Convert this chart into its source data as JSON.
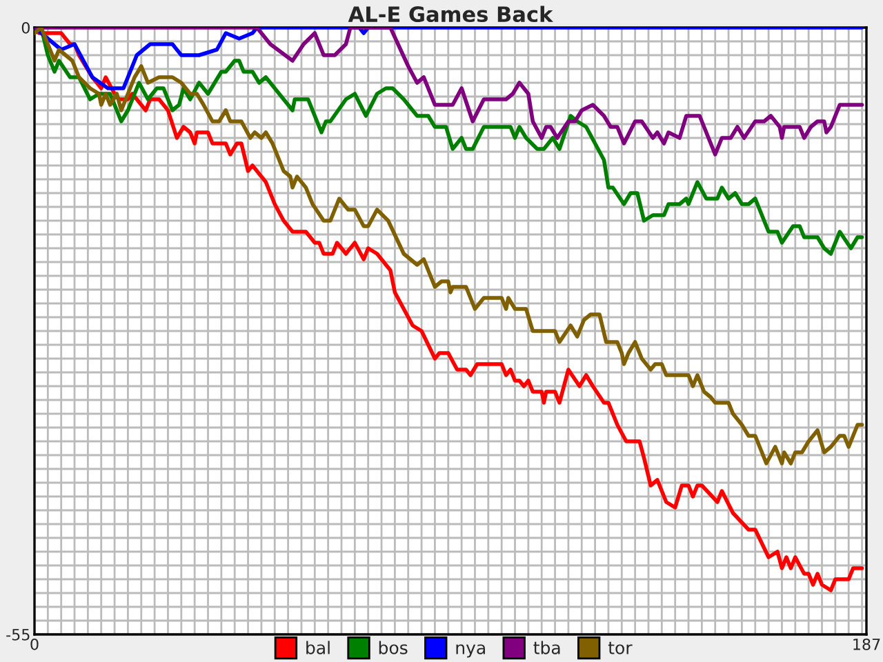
{
  "chart_data": {
    "type": "line",
    "title": "AL-E Games Back",
    "xlim": [
      0,
      187
    ],
    "ylim": [
      -55,
      0
    ],
    "xticks": [
      0,
      {
        "value": 3,
        "label": null
      },
      {
        "value": 6,
        "label": null
      },
      {
        "value": 9,
        "label": null
      },
      {
        "value": 12,
        "label": null
      },
      {
        "value": 15,
        "label": null
      },
      {
        "value": 18,
        "label": null
      },
      {
        "value": 21,
        "label": null
      },
      {
        "value": 24,
        "label": null
      },
      {
        "value": 27,
        "label": null
      },
      {
        "value": 30,
        "label": null
      },
      {
        "value": 33,
        "label": null
      },
      {
        "value": 36,
        "label": null
      },
      {
        "value": 39,
        "label": null
      },
      {
        "value": 42,
        "label": null
      },
      {
        "value": 45,
        "label": null
      },
      {
        "value": 48,
        "label": null
      },
      {
        "value": 51,
        "label": null
      },
      {
        "value": 54,
        "label": null
      },
      {
        "value": 57,
        "label": null
      },
      {
        "value": 60,
        "label": null
      },
      {
        "value": 63,
        "label": null
      },
      {
        "value": 66,
        "label": null
      },
      {
        "value": 69,
        "label": null
      },
      {
        "value": 72,
        "label": null
      },
      {
        "value": 75,
        "label": null
      },
      {
        "value": 78,
        "label": null
      },
      {
        "value": 81,
        "label": null
      },
      {
        "value": 84,
        "label": null
      },
      {
        "value": 87,
        "label": null
      },
      {
        "value": 90,
        "label": null
      },
      {
        "value": 93,
        "label": null
      },
      {
        "value": 96,
        "label": null
      },
      {
        "value": 99,
        "label": null
      },
      {
        "value": 102,
        "label": null
      },
      {
        "value": 105,
        "label": null
      },
      {
        "value": 108,
        "label": null
      },
      {
        "value": 111,
        "label": null
      },
      {
        "value": 114,
        "label": null
      },
      {
        "value": 117,
        "label": null
      },
      {
        "value": 120,
        "label": null
      },
      {
        "value": 123,
        "label": null
      },
      {
        "value": 126,
        "label": null
      },
      {
        "value": 129,
        "label": null
      },
      {
        "value": 132,
        "label": null
      },
      {
        "value": 135,
        "label": null
      },
      {
        "value": 138,
        "label": null
      },
      {
        "value": 141,
        "label": null
      },
      {
        "value": 144,
        "label": null
      },
      {
        "value": 147,
        "label": null
      },
      {
        "value": 150,
        "label": null
      },
      {
        "value": 153,
        "label": null
      },
      {
        "value": 156,
        "label": null
      },
      {
        "value": 159,
        "label": null
      },
      {
        "value": 162,
        "label": null
      },
      {
        "value": 165,
        "label": null
      },
      {
        "value": 168,
        "label": null
      },
      {
        "value": 171,
        "label": null
      },
      {
        "value": 174,
        "label": null
      },
      {
        "value": 177,
        "label": null
      },
      {
        "value": 180,
        "label": null
      },
      {
        "value": 183,
        "label": null
      },
      {
        "value": 186,
        "label": null
      },
      187
    ],
    "yticks": [
      0,
      {
        "value": -1.25,
        "label": null
      },
      {
        "value": -2.5,
        "label": null
      },
      {
        "value": -3.75,
        "label": null
      },
      {
        "value": -5,
        "label": null
      },
      {
        "value": -6.25,
        "label": null
      },
      {
        "value": -7.5,
        "label": null
      },
      {
        "value": -8.75,
        "label": null
      },
      {
        "value": -10,
        "label": null
      },
      {
        "value": -11.25,
        "label": null
      },
      {
        "value": -12.5,
        "label": null
      },
      {
        "value": -13.75,
        "label": null
      },
      {
        "value": -15,
        "label": null
      },
      {
        "value": -16.25,
        "label": null
      },
      {
        "value": -17.5,
        "label": null
      },
      {
        "value": -18.75,
        "label": null
      },
      {
        "value": -20,
        "label": null
      },
      {
        "value": -21.25,
        "label": null
      },
      {
        "value": -22.5,
        "label": null
      },
      {
        "value": -23.75,
        "label": null
      },
      {
        "value": -25,
        "label": null
      },
      {
        "value": -26.25,
        "label": null
      },
      {
        "value": -27.5,
        "label": null
      },
      {
        "value": -28.75,
        "label": null
      },
      {
        "value": -30,
        "label": null
      },
      {
        "value": -31.25,
        "label": null
      },
      {
        "value": -32.5,
        "label": null
      },
      {
        "value": -33.75,
        "label": null
      },
      {
        "value": -35,
        "label": null
      },
      {
        "value": -36.25,
        "label": null
      },
      {
        "value": -37.5,
        "label": null
      },
      {
        "value": -38.75,
        "label": null
      },
      {
        "value": -40,
        "label": null
      },
      {
        "value": -41.25,
        "label": null
      },
      {
        "value": -42.5,
        "label": null
      },
      {
        "value": -43.75,
        "label": null
      },
      {
        "value": -45,
        "label": null
      },
      {
        "value": -46.25,
        "label": null
      },
      {
        "value": -47.5,
        "label": null
      },
      {
        "value": -48.75,
        "label": null
      },
      {
        "value": -50,
        "label": null
      },
      {
        "value": -51.25,
        "label": null
      },
      {
        "value": -52.5,
        "label": null
      },
      {
        "value": -53.75,
        "label": null
      },
      -55
    ],
    "grid": true,
    "legend": "bottom",
    "marker": "none",
    "line_style": "solid",
    "series": [
      {
        "name": "bal",
        "color": "#ff0000",
        "x": [
          0,
          1,
          2,
          6,
          8,
          9,
          10,
          13,
          15,
          16,
          18,
          19,
          21,
          22,
          23,
          25,
          26,
          28,
          30,
          32,
          33.5,
          35,
          36,
          36.5,
          39,
          40,
          43,
          44,
          45.5,
          46.5,
          48,
          49,
          50,
          52,
          54,
          56,
          58,
          61,
          63,
          64,
          65,
          67,
          68,
          70,
          72,
          74,
          75,
          77,
          78,
          80,
          81,
          85,
          87,
          90,
          91,
          93,
          95,
          97,
          98,
          99.5,
          105,
          106,
          107,
          108,
          109,
          110,
          111,
          112,
          114,
          114.5,
          115,
          117,
          118,
          120,
          122.5,
          124,
          125.5,
          128,
          129,
          131,
          133,
          136,
          137,
          138.5,
          140,
          142,
          144,
          145.5,
          147,
          148,
          149,
          150,
          153.5,
          154.5,
          157,
          160.5,
          162,
          165,
          167,
          168,
          169,
          170,
          171,
          173,
          174,
          175,
          176,
          177,
          179,
          180,
          183,
          184,
          186
        ],
        "values": [
          0,
          -0.5,
          -0.5,
          -0.5,
          -1.5,
          -1.5,
          -2.5,
          -4.5,
          -5.5,
          -4.5,
          -6,
          -6.5,
          -6.5,
          -6,
          -6.5,
          -7.5,
          -6.5,
          -6.5,
          -7.5,
          -10,
          -9,
          -9.5,
          -10.5,
          -9.5,
          -9.5,
          -10.5,
          -10.5,
          -11.5,
          -10.5,
          -10.5,
          -13,
          -12.5,
          -13,
          -14,
          -16,
          -17.5,
          -18.5,
          -18.5,
          -19.5,
          -19.5,
          -20.5,
          -20.5,
          -19.5,
          -20.5,
          -19.5,
          -21,
          -20,
          -20.5,
          -21,
          -22,
          -24,
          -27,
          -27.5,
          -30,
          -29.5,
          -29.5,
          -31,
          -31,
          -31.5,
          -30.5,
          -30.5,
          -31.5,
          -31,
          -32,
          -32,
          -32.5,
          -32,
          -33,
          -33,
          -34,
          -33,
          -33,
          -34,
          -31,
          -32.5,
          -31.5,
          -32.5,
          -34,
          -34,
          -36,
          -37.5,
          -37.5,
          -39,
          -41.5,
          -41,
          -43,
          -43.5,
          -41.5,
          -41.5,
          -42.5,
          -41.5,
          -41.5,
          -43,
          -42,
          -44,
          -45.5,
          -45.5,
          -48,
          -47.5,
          -49,
          -48,
          -49,
          -48,
          -49.5,
          -49.5,
          -50.5,
          -49.5,
          -50.5,
          -51,
          -50,
          -50,
          -49,
          -49
        ]
      },
      {
        "name": "bos",
        "color": "#008000",
        "x": [
          0,
          1.5,
          3,
          4.5,
          5.5,
          8,
          10,
          12.5,
          14.5,
          17,
          19.5,
          21,
          23.5,
          25.5,
          27.5,
          29,
          31,
          32.5,
          33.5,
          35,
          37,
          39,
          40.5,
          42,
          43,
          45,
          46,
          47,
          49,
          50.5,
          52,
          54,
          58,
          58.5,
          61.5,
          64.5,
          65.5,
          66.5,
          70,
          72,
          74.5,
          77,
          79,
          80.5,
          83,
          86,
          88.5,
          90,
          92.5,
          94,
          96,
          97,
          98.5,
          101,
          107,
          108,
          109,
          110.5,
          113,
          114.5,
          116.5,
          118,
          120.5,
          122,
          124,
          126,
          128,
          129,
          130,
          132.5,
          134,
          135.5,
          137,
          139,
          141.5,
          142.5,
          145,
          146.5,
          147,
          149,
          151,
          153.5,
          154.5,
          156,
          157.5,
          159,
          160.5,
          162,
          165,
          167,
          168,
          170.5,
          172,
          173,
          176,
          177.5,
          179,
          181,
          183.5,
          185,
          186
        ],
        "values": [
          -0.5,
          0,
          -2.5,
          -4,
          -3,
          -4.5,
          -4.5,
          -6.5,
          -6,
          -6,
          -8.5,
          -7.5,
          -5,
          -6.5,
          -5.5,
          -5.5,
          -7.5,
          -7,
          -5.5,
          -6.5,
          -5,
          -6,
          -5,
          -4,
          -4,
          -3,
          -3,
          -4,
          -4,
          -5,
          -4.5,
          -5.5,
          -7.5,
          -6.5,
          -6.5,
          -9.5,
          -8.5,
          -8.5,
          -6.5,
          -6,
          -8,
          -6,
          -5.5,
          -5.5,
          -6.5,
          -8,
          -8,
          -9,
          -9,
          -11,
          -10,
          -11,
          -11,
          -9,
          -9,
          -10,
          -9,
          -10,
          -11,
          -11,
          -10,
          -11,
          -8,
          -8.5,
          -9,
          -10.5,
          -12,
          -14.5,
          -14.5,
          -16,
          -15,
          -15,
          -17.5,
          -17,
          -17,
          -16,
          -16,
          -15.5,
          -16,
          -14,
          -15.5,
          -15.5,
          -14.5,
          -15.5,
          -15,
          -16,
          -16,
          -15.5,
          -18.5,
          -18.5,
          -19.5,
          -18,
          -18,
          -19,
          -19,
          -20,
          -20.5,
          -18.5,
          -20,
          -19,
          -19
        ]
      },
      {
        "name": "nya",
        "color": "#0000ff",
        "x": [
          0,
          3,
          6,
          9,
          13,
          16.5,
          20,
          23,
          26,
          31,
          33,
          37,
          41,
          43,
          46,
          49,
          50,
          73,
          74,
          75,
          186
        ],
        "values": [
          0,
          -1,
          -2,
          -1.5,
          -4.5,
          -5.5,
          -5.5,
          -2.5,
          -1.5,
          -1.5,
          -2.5,
          -2.5,
          -2,
          -0.5,
          -1,
          -0.5,
          0,
          0,
          -0.5,
          0,
          0
        ]
      },
      {
        "name": "tba",
        "color": "#800080",
        "x": [
          0,
          50,
          53,
          58,
          60.5,
          63,
          65,
          67.5,
          70,
          71,
          80,
          84,
          86,
          87.5,
          90,
          92.5,
          94,
          96,
          98.5,
          101,
          106,
          107.5,
          109,
          111,
          112,
          114,
          115,
          116,
          117.5,
          120,
          121.5,
          123,
          125.5,
          128,
          129.5,
          131,
          132.5,
          135,
          136.5,
          139,
          140,
          141.5,
          142.5,
          145,
          146.5,
          149.5,
          153,
          154.5,
          156.5,
          158,
          159.5,
          162,
          164,
          165.5,
          167.5,
          168,
          168.5,
          172,
          173,
          174.5,
          176,
          177.5,
          178,
          179,
          181,
          186
        ],
        "values": [
          0,
          0,
          -1.5,
          -3,
          -1.5,
          -0.5,
          -2.5,
          -2.5,
          -1.5,
          0,
          0,
          -3.5,
          -5,
          -4.5,
          -7,
          -7,
          -7,
          -5.5,
          -8.5,
          -6.5,
          -6.5,
          -6,
          -5,
          -6,
          -8.5,
          -10,
          -9,
          -9,
          -10,
          -8.5,
          -8.5,
          -7.5,
          -7,
          -8,
          -9,
          -9,
          -10.5,
          -8.5,
          -8.5,
          -10,
          -9.5,
          -10.5,
          -9.5,
          -10,
          -8,
          -8,
          -11.5,
          -10,
          -10,
          -9,
          -10,
          -8.5,
          -8.5,
          -8,
          -9,
          -10,
          -9,
          -9,
          -10,
          -9,
          -8.5,
          -8.5,
          -9.5,
          -9,
          -7,
          -7
        ]
      },
      {
        "name": "tor",
        "color": "#806000",
        "x": [
          0,
          1.5,
          3,
          4.5,
          5.5,
          7,
          8.5,
          10,
          12.5,
          14.5,
          15,
          16,
          17,
          18.5,
          19.5,
          21,
          22.5,
          24,
          25.5,
          28,
          31,
          33,
          35,
          36.5,
          38,
          40,
          41.5,
          43,
          44,
          46.5,
          48.5,
          49.5,
          51,
          52,
          53.5,
          56,
          57.5,
          58,
          59,
          61,
          62.5,
          65,
          66.5,
          68.5,
          70.5,
          72,
          74,
          75,
          77,
          79.5,
          83,
          86,
          87.5,
          90,
          91.5,
          93,
          93.5,
          94,
          97,
          99,
          101,
          105,
          106,
          106.5,
          108,
          110.5,
          112,
          117,
          118,
          120.5,
          122,
          123.5,
          125,
          127,
          128.5,
          131,
          132,
          132.5,
          133.5,
          135,
          136.5,
          138.5,
          139.5,
          141,
          142,
          147,
          148,
          149,
          150.5,
          152,
          153,
          156,
          157,
          159,
          160.5,
          162,
          163,
          164.5,
          166.5,
          168,
          168.5,
          170,
          171,
          172.5,
          174,
          176,
          177.5,
          179,
          181,
          182,
          183,
          185,
          186
        ],
        "values": [
          -0.5,
          0,
          -1.5,
          -3,
          -2,
          -2.5,
          -3,
          -4.5,
          -5.5,
          -6,
          -7,
          -6,
          -7,
          -6,
          -7.5,
          -6,
          -4.5,
          -3.5,
          -5,
          -4.5,
          -4.5,
          -5,
          -6,
          -6,
          -7,
          -8.5,
          -8.5,
          -7.5,
          -8.5,
          -8.5,
          -10,
          -9.5,
          -10,
          -9.5,
          -10.5,
          -13,
          -13.5,
          -14.5,
          -13.5,
          -14.5,
          -16,
          -17.5,
          -17.5,
          -15.5,
          -16.5,
          -16.5,
          -18,
          -18,
          -16.5,
          -17.5,
          -20.5,
          -21.5,
          -21,
          -23.5,
          -23,
          -23,
          -24,
          -23.5,
          -23.5,
          -25.5,
          -24.5,
          -24.5,
          -25.5,
          -24.5,
          -25.5,
          -25.5,
          -27.5,
          -27.5,
          -28.5,
          -27,
          -28,
          -26.5,
          -26,
          -26,
          -28.5,
          -28.5,
          -29.5,
          -30.5,
          -29.5,
          -28.5,
          -30,
          -31,
          -30.5,
          -30.5,
          -31.5,
          -31.5,
          -32.5,
          -31.5,
          -33,
          -33.5,
          -34,
          -34,
          -35,
          -36,
          -37,
          -37,
          -38,
          -39.5,
          -38,
          -39.5,
          -38.5,
          -39.5,
          -38.5,
          -38.5,
          -37.5,
          -36.5,
          -38.5,
          -38,
          -37,
          -37,
          -38,
          -36,
          -36
        ]
      }
    ]
  }
}
